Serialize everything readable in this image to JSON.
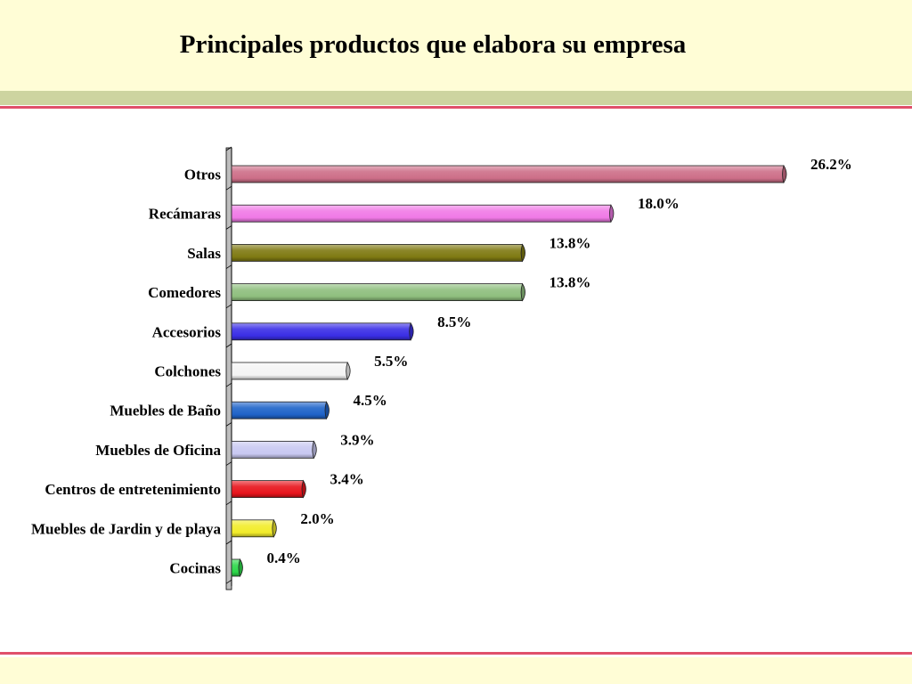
{
  "title": "Principales productos que elabora su empresa",
  "chart_data": {
    "type": "bar",
    "orientation": "horizontal",
    "title": "Principales productos que elabora su empresa",
    "categories": [
      "Otros",
      "Recámaras",
      "Salas",
      "Comedores",
      "Accesorios",
      "Colchones",
      "Muebles de Baño",
      "Muebles de Oficina",
      "Centros de entretenimiento",
      "Muebles de Jardin y de playa",
      "Cocinas"
    ],
    "values": [
      26.2,
      18.0,
      13.8,
      13.8,
      8.5,
      5.5,
      4.5,
      3.9,
      3.4,
      2.0,
      0.4
    ],
    "value_labels": [
      "26.2%",
      "18.0%",
      "13.8%",
      "13.8%",
      "8.5%",
      "5.5%",
      "4.5%",
      "3.9%",
      "3.4%",
      "2.0%",
      "0.4%"
    ],
    "unit": "%",
    "colors": [
      "#cd6e88",
      "#f07ae6",
      "#7f7a12",
      "#8fbf7e",
      "#3a2ee6",
      "#f4f4f4",
      "#1f63c8",
      "#c9c9f2",
      "#e8141c",
      "#f2ec2a",
      "#2dd84a"
    ],
    "xlim": [
      0,
      26.2
    ],
    "grid": false,
    "legend": "none"
  }
}
